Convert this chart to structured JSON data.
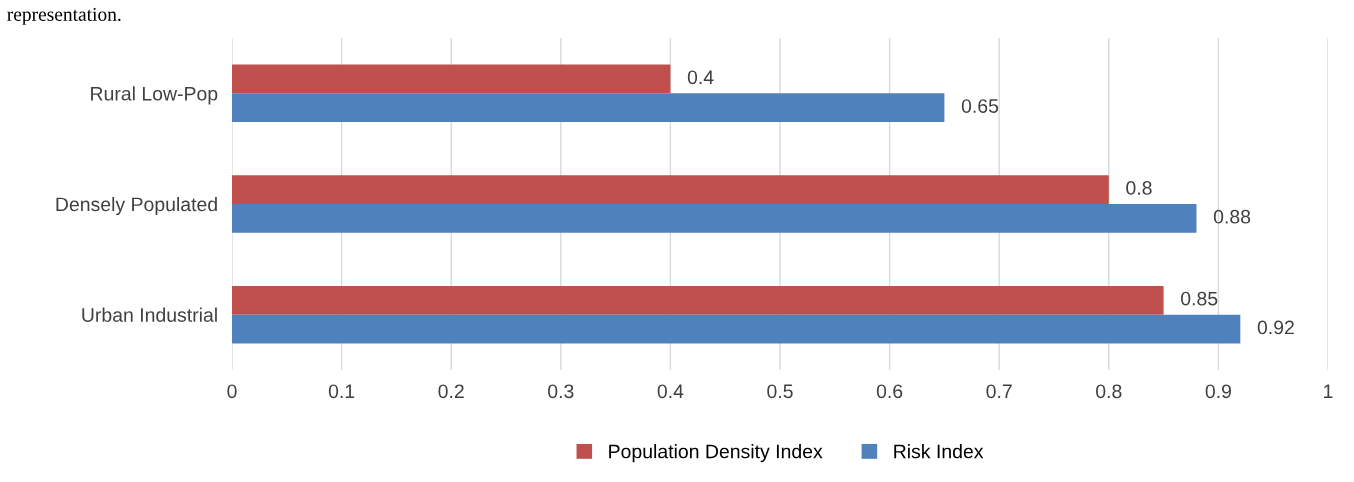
{
  "chart_data": {
    "type": "bar",
    "orientation": "horizontal",
    "categories": [
      "Rural Low-Pop",
      "Densely Populated",
      "Urban Industrial"
    ],
    "series": [
      {
        "name": "Population Density Index",
        "color": "#c0504d",
        "values": [
          0.4,
          0.8,
          0.85
        ]
      },
      {
        "name": "Risk Index",
        "color": "#4f81bd",
        "values": [
          0.65,
          0.88,
          0.92
        ]
      }
    ],
    "xlim": [
      0,
      1
    ],
    "xticks": [
      0,
      0.1,
      0.2,
      0.3,
      0.4,
      0.5,
      0.6,
      0.7,
      0.8,
      0.9,
      1
    ],
    "grid": "x",
    "legend": "bottom",
    "data_labels": true,
    "annotations": [
      "representation."
    ]
  }
}
